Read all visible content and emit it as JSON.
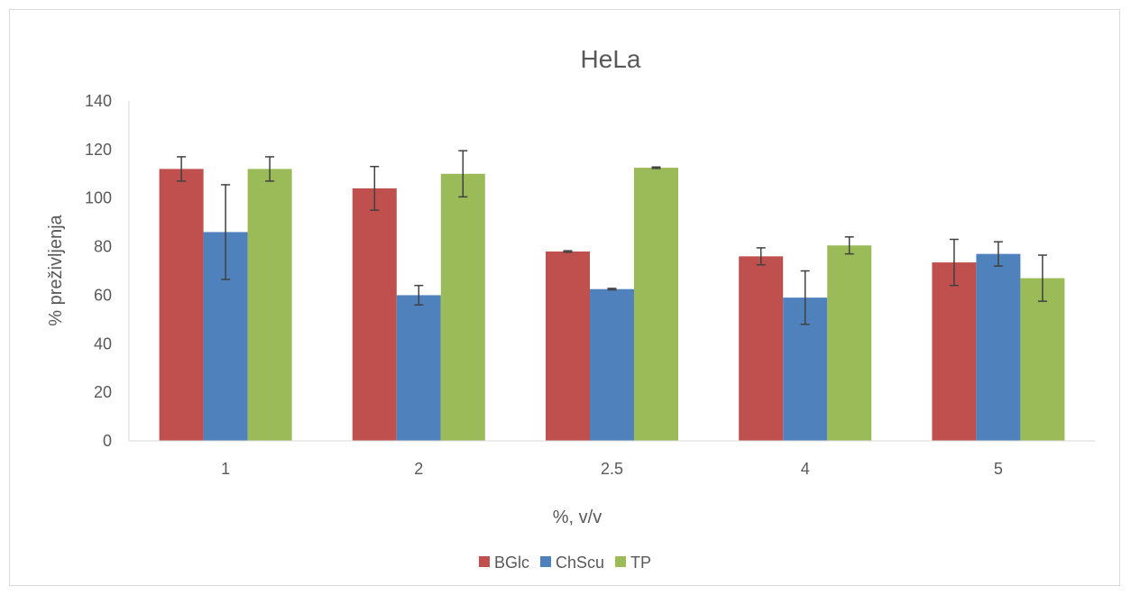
{
  "chart_data": {
    "type": "bar",
    "title": "HeLa",
    "xlabel": "%, v/v",
    "ylabel": "% preživljenja",
    "ylim": [
      0,
      140
    ],
    "ytick_step": 20,
    "categories": [
      "1",
      "2",
      "2.5",
      "4",
      "5"
    ],
    "series": [
      {
        "name": "BGlc",
        "color": "#c0504d",
        "values": [
          112,
          104,
          78,
          76,
          73.5
        ],
        "errors": [
          5,
          9,
          0.3,
          3.5,
          9.5
        ]
      },
      {
        "name": "ChScu",
        "color": "#4f81bd",
        "values": [
          86,
          60,
          62.5,
          59,
          77
        ],
        "errors": [
          19.5,
          4,
          0.3,
          11,
          5
        ]
      },
      {
        "name": "TP",
        "color": "#9bbb59",
        "values": [
          112,
          110,
          112.5,
          80.5,
          67
        ],
        "errors": [
          5,
          9.5,
          0.3,
          3.5,
          9.5
        ]
      }
    ],
    "grid": false,
    "legend_position": "bottom",
    "error_bar_color": "#404040"
  }
}
